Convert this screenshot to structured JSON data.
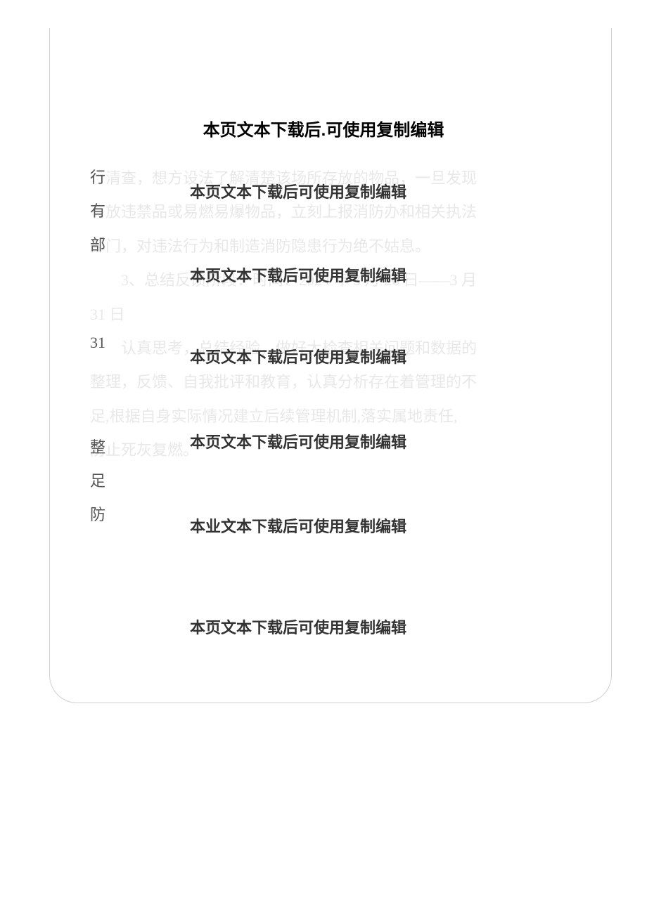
{
  "header": "本页文本下载后.可使用复制编辑",
  "watermarks": {
    "wm1": "本页文本下载后可使用复制编辑",
    "wm2": "本页文本下载后可使用复制编辑",
    "wm3": "本页文本下载后可使用复制编辑",
    "wm4": "本页文本下载后可使用复制编辑",
    "wm5": "本业文本下载后可使用复制编辑",
    "wm6": "本页文本下载后可使用复制编辑"
  },
  "faded": {
    "line1": "行清查，想方设法了解清楚该场所存放的物品，一旦发现",
    "line2": "有放违禁品或易燃易爆物品，立刻上报消防办和相关执法",
    "line3": "部门，对违法行为和制造消防隐患行为绝不姑息。",
    "line4": "　　3、总结反馈阶段：时间：2024 年 3 月 26 日——3 月",
    "line5": "31 日",
    "line6": "　　认真思考，总结经验，做好大检查相关问题和数据的",
    "line7": "整理，反馈、自我批评和教育，认真分析存在着管理的不",
    "line8": "足,根据自身实际情况建立后续管理机制,落实属地责任,",
    "line9": "防止死灰复燃。"
  },
  "leftChars": {
    "c1": "行",
    "c2": "有",
    "c3": "部",
    "c4": "31",
    "c5": "整",
    "c6": "足",
    "c7": "防"
  },
  "colors": {
    "background": "#ffffff",
    "border": "#d0d0d0",
    "headerText": "#000000",
    "watermarkText": "#333333",
    "fadedText": "#e8e8e8",
    "leftCharColor": "#555555"
  },
  "typography": {
    "headerFontSize": 24,
    "bodyFontSize": 22,
    "lineHeight": 2.2,
    "headerFontFamily": "Microsoft YaHei",
    "bodyFontFamily": "SimSun"
  },
  "layout": {
    "pageWidth": 920,
    "pageHeight": 1301,
    "borderRadius": 40,
    "containerTop": 40,
    "containerLeft": 70,
    "containerRight": 50
  }
}
